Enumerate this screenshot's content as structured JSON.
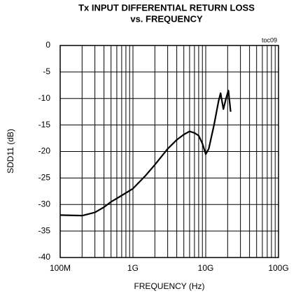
{
  "chart_data": {
    "type": "line",
    "title": "Tx INPUT DIFFERENTIAL RETURN LOSS",
    "subtitle": "vs. FREQUENCY",
    "annotation": "toc09",
    "xlabel": "FREQUENCY (Hz)",
    "ylabel": "SDD11 (dB)",
    "xscale": "log",
    "grid": true,
    "xlim": [
      100000000,
      100000000000
    ],
    "ylim": [
      -40,
      0
    ],
    "xticks": [
      {
        "value": 100000000,
        "label": "100M"
      },
      {
        "value": 1000000000,
        "label": "1G"
      },
      {
        "value": 10000000000,
        "label": "10G"
      },
      {
        "value": 100000000000,
        "label": "100G"
      }
    ],
    "xminorticks": [
      200000000,
      300000000,
      400000000,
      500000000,
      600000000,
      700000000,
      800000000,
      900000000,
      2000000000,
      3000000000,
      4000000000,
      5000000000,
      6000000000,
      7000000000,
      8000000000,
      9000000000,
      20000000000,
      30000000000,
      40000000000,
      50000000000,
      60000000000,
      70000000000,
      80000000000,
      90000000000
    ],
    "yticks": [
      0,
      -5,
      -10,
      -15,
      -20,
      -25,
      -30,
      -35,
      -40
    ],
    "series": [
      {
        "color": "#000000",
        "x": [
          100000000,
          200000000,
          300000000,
          400000000,
          500000000,
          700000000,
          1000000000,
          1500000000,
          2000000000,
          3000000000,
          4000000000,
          5000000000,
          6000000000,
          7000000000,
          8000000000,
          9000000000,
          10000000000,
          11000000000,
          13000000000,
          15000000000,
          16000000000,
          17500000000,
          19000000000,
          20500000000,
          22000000000
        ],
        "values": [
          -32,
          -32.1,
          -31.5,
          -30.5,
          -29.5,
          -28.3,
          -27,
          -24.5,
          -22.5,
          -19.5,
          -17.8,
          -16.8,
          -16.2,
          -16.5,
          -17,
          -18.5,
          -20.5,
          -19.5,
          -15,
          -10.5,
          -9,
          -12,
          -10,
          -8.5,
          -12.5
        ]
      }
    ]
  }
}
